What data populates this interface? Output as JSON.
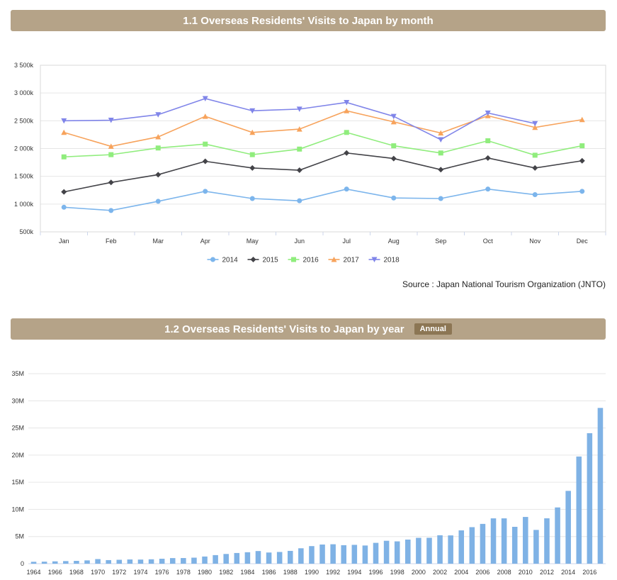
{
  "section1": {
    "title": "1.1 Overseas Residents' Visits to Japan by month"
  },
  "section2": {
    "title": "1.2 Overseas Residents' Visits to Japan by year",
    "badge": "Annual"
  },
  "source": "Source : Japan National Tourism Organization (JNTO)",
  "colors": {
    "header": "#b5a388",
    "badge": "#8c7654",
    "bar": "#7fb2e5"
  },
  "chart_data": [
    {
      "type": "line",
      "categories": [
        "Jan",
        "Feb",
        "Mar",
        "Apr",
        "May",
        "Jun",
        "Jul",
        "Aug",
        "Sep",
        "Oct",
        "Nov",
        "Dec"
      ],
      "ylim": [
        500,
        3500
      ],
      "yticks": [
        500,
        1000,
        1500,
        2000,
        2500,
        3000,
        3500
      ],
      "ytick_labels": [
        "500k",
        "1 000k",
        "1 500k",
        "2 000k",
        "2 500k",
        "3 000k",
        "3 500k"
      ],
      "legend_position": "bottom-center",
      "grid": true,
      "series": [
        {
          "name": "2014",
          "color": "#7cb5ec",
          "marker": "circle",
          "values": [
            943,
            885,
            1050,
            1230,
            1100,
            1060,
            1270,
            1110,
            1100,
            1270,
            1170,
            1230
          ]
        },
        {
          "name": "2015",
          "color": "#434348",
          "marker": "diamond",
          "values": [
            1220,
            1390,
            1530,
            1770,
            1650,
            1610,
            1920,
            1820,
            1620,
            1830,
            1650,
            1780
          ]
        },
        {
          "name": "2016",
          "color": "#90ed7d",
          "marker": "square",
          "values": [
            1850,
            1890,
            2010,
            2080,
            1890,
            1990,
            2290,
            2050,
            1920,
            2140,
            1880,
            2050
          ]
        },
        {
          "name": "2017",
          "color": "#f7a35c",
          "marker": "triangle",
          "values": [
            2290,
            2040,
            2210,
            2580,
            2290,
            2350,
            2680,
            2480,
            2280,
            2590,
            2380,
            2520
          ]
        },
        {
          "name": "2018",
          "color": "#8085e9",
          "marker": "triangle-down",
          "values": [
            2500,
            2510,
            2610,
            2900,
            2680,
            2710,
            2830,
            2580,
            2160,
            2640,
            2450,
            null
          ]
        }
      ]
    },
    {
      "type": "bar",
      "categories": [
        1964,
        1965,
        1966,
        1967,
        1968,
        1969,
        1970,
        1971,
        1972,
        1973,
        1974,
        1975,
        1976,
        1977,
        1978,
        1979,
        1980,
        1981,
        1982,
        1983,
        1984,
        1985,
        1986,
        1987,
        1988,
        1989,
        1990,
        1991,
        1992,
        1993,
        1994,
        1995,
        1996,
        1997,
        1998,
        1999,
        2000,
        2001,
        2002,
        2003,
        2004,
        2005,
        2006,
        2007,
        2008,
        2009,
        2010,
        2011,
        2012,
        2013,
        2014,
        2015,
        2016,
        2017
      ],
      "xtick_labels": [
        "1964",
        "1966",
        "1968",
        "1970",
        "1972",
        "1974",
        "1976",
        "1978",
        "1980",
        "1982",
        "1984",
        "1986",
        "1988",
        "1990",
        "1992",
        "1994",
        "1996",
        "1998",
        "2000",
        "2002",
        "2004",
        "2006",
        "2008",
        "2010",
        "2012",
        "2014",
        "2016"
      ],
      "values": [
        0.35,
        0.37,
        0.43,
        0.48,
        0.52,
        0.61,
        0.85,
        0.66,
        0.72,
        0.78,
        0.76,
        0.81,
        0.91,
        1.03,
        1.04,
        1.11,
        1.32,
        1.58,
        1.79,
        1.97,
        2.11,
        2.33,
        2.06,
        2.16,
        2.36,
        2.84,
        3.24,
        3.53,
        3.58,
        3.41,
        3.47,
        3.35,
        3.84,
        4.22,
        4.11,
        4.44,
        4.76,
        4.77,
        5.24,
        5.21,
        6.14,
        6.73,
        7.33,
        8.35,
        8.35,
        6.79,
        8.61,
        6.22,
        8.36,
        10.36,
        13.41,
        19.74,
        24.04,
        28.69
      ],
      "unit": "M",
      "ylim": [
        0,
        35
      ],
      "yticks": [
        0,
        5,
        10,
        15,
        20,
        25,
        30,
        35
      ],
      "ytick_labels": [
        "0",
        "5M",
        "10M",
        "15M",
        "20M",
        "25M",
        "30M",
        "35M"
      ],
      "grid": true,
      "legend": false
    }
  ]
}
